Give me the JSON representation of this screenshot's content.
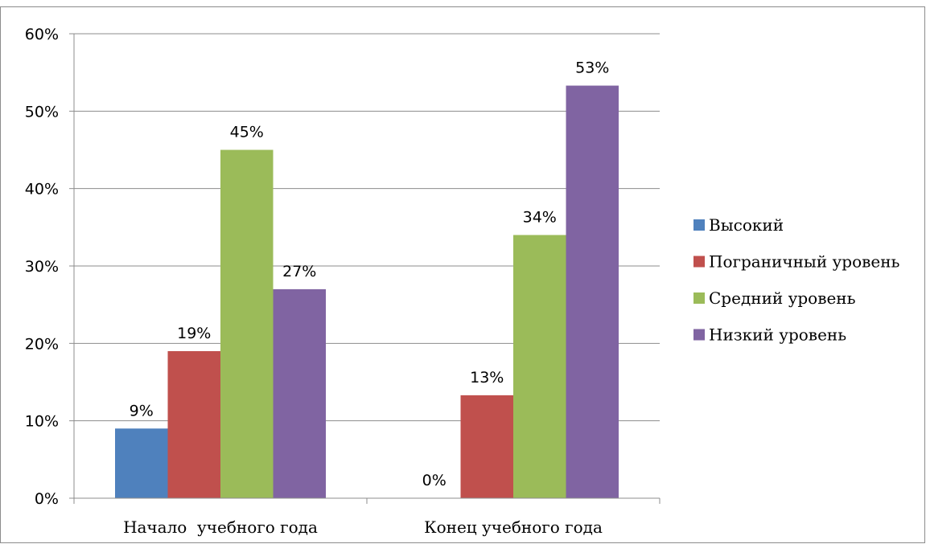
{
  "chart_data": {
    "type": "bar",
    "categories": [
      "Начало  учебного года",
      "Конец учебного года"
    ],
    "series": [
      {
        "name": "Высокий",
        "values": [
          9,
          0
        ],
        "labels": [
          "9%",
          "0%"
        ],
        "color": "#4f81bd"
      },
      {
        "name": "Пограничный уровень",
        "values": [
          19,
          13.3
        ],
        "labels": [
          "19%",
          "13%"
        ],
        "color": "#c0504d"
      },
      {
        "name": "Средний уровень",
        "values": [
          45,
          34
        ],
        "labels": [
          "45%",
          "34%"
        ],
        "color": "#9bbb59"
      },
      {
        "name": "Низкий уровень",
        "values": [
          27,
          53.3
        ],
        "labels": [
          "27%",
          "53%"
        ],
        "color": "#8064a2"
      }
    ],
    "y_ticks": [
      "0%",
      "10%",
      "20%",
      "30%",
      "40%",
      "50%",
      "60%"
    ],
    "ylim": [
      0,
      60
    ],
    "grid": true,
    "legend_position": "right"
  }
}
